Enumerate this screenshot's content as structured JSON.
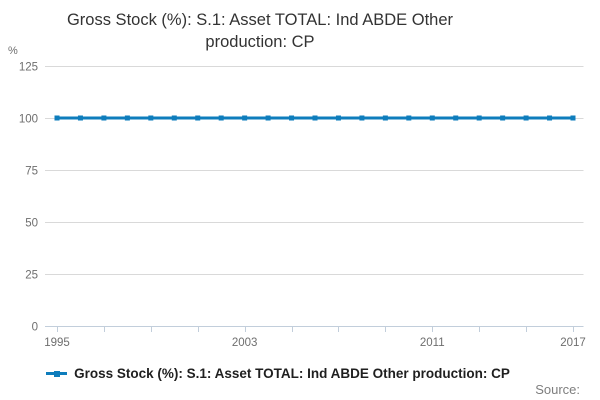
{
  "chart_title": {
    "full": "Gross Stock (%): S.1: Asset TOTAL: Ind ABDE Other production: CP",
    "lines": [
      "Gross Stock (%): S.1: Asset TOTAL: Ind ABDE Other",
      "production: CP"
    ]
  },
  "y_axis": {
    "unit_label": "%"
  },
  "legend": {
    "items": [
      {
        "label": "Gross Stock (%): S.1: Asset TOTAL: Ind ABDE Other production: CP",
        "color": "#0e7dbc"
      }
    ]
  },
  "source": {
    "label": "Source:"
  },
  "colors": {
    "line": "#0e7dbc",
    "gridline": "#d9d9d9",
    "axis_line": "#c2cedb",
    "tick": "#c2cedb",
    "axis_label": "#6e6e6e",
    "title_text": "#333333",
    "legend_text": "#1f1f1f",
    "source_text": "#7e7e7e",
    "background": "#ffffff"
  },
  "chart_data": {
    "type": "line",
    "title": "Gross Stock (%): S.1: Asset TOTAL: Ind ABDE Other production: CP",
    "x": [
      1995,
      1996,
      1997,
      1998,
      1999,
      2000,
      2001,
      2002,
      2003,
      2004,
      2005,
      2006,
      2007,
      2008,
      2009,
      2010,
      2011,
      2012,
      2013,
      2014,
      2015,
      2016,
      2017
    ],
    "series": [
      {
        "name": "Gross Stock (%): S.1: Asset TOTAL: Ind ABDE Other production: CP",
        "color": "#0e7dbc",
        "marker": "square",
        "values": [
          100,
          100,
          100,
          100,
          100,
          100,
          100,
          100,
          100,
          100,
          100,
          100,
          100,
          100,
          100,
          100,
          100,
          100,
          100,
          100,
          100,
          100,
          100
        ]
      }
    ],
    "xlabel": "",
    "ylabel": "%",
    "ylim": [
      0,
      125
    ],
    "yticks": [
      0,
      25,
      50,
      75,
      100,
      125
    ],
    "xtick_step": 2,
    "xtick_labels_shown": [
      1995,
      2003,
      2011,
      2017
    ],
    "grid": true,
    "legend_position": "bottom"
  }
}
